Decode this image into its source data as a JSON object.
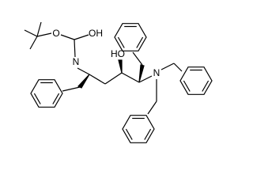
{
  "atoms": [
    {
      "label": "O"
    },
    {
      "label": "OH"
    },
    {
      "label": "N"
    },
    {
      "label": "HO"
    },
    {
      "label": "N"
    }
  ]
}
